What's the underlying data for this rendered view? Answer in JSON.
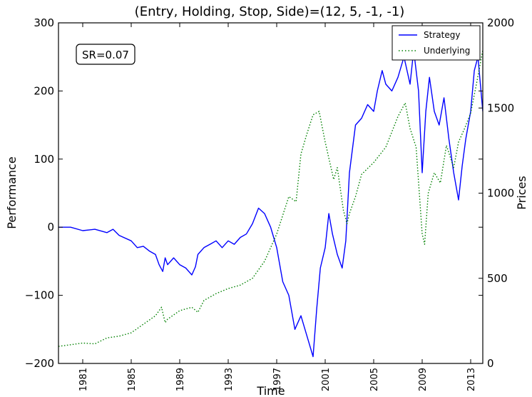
{
  "chart_data": {
    "type": "line",
    "title": "(Entry, Holding, Stop, Side)=(12, 5, -1, -1)",
    "xlabel": "Time",
    "ylabel": "Performance",
    "y2label": "Prices",
    "xlim": [
      1979.0,
      2014.0
    ],
    "ylim": [
      -200,
      300
    ],
    "y2lim": [
      0,
      2000
    ],
    "xticks": [
      1981,
      1985,
      1989,
      1993,
      1997,
      2001,
      2005,
      2009,
      2013
    ],
    "yticks": [
      -200,
      -100,
      0,
      100,
      200,
      300
    ],
    "y2ticks": [
      0,
      500,
      1000,
      1500,
      2000
    ],
    "grid": false,
    "legend_position": "upper-right",
    "annotation": "SR=0.07",
    "series": [
      {
        "name": "Strategy",
        "axis": "left",
        "color": "#0000ff",
        "style": "solid",
        "points": [
          [
            1979.0,
            0
          ],
          [
            1980.0,
            0
          ],
          [
            1981.0,
            -5
          ],
          [
            1982.0,
            -3
          ],
          [
            1983.0,
            -8
          ],
          [
            1983.5,
            -3
          ],
          [
            1984.0,
            -12
          ],
          [
            1985.0,
            -20
          ],
          [
            1985.5,
            -30
          ],
          [
            1986.0,
            -28
          ],
          [
            1986.5,
            -35
          ],
          [
            1987.0,
            -40
          ],
          [
            1987.3,
            -55
          ],
          [
            1987.6,
            -65
          ],
          [
            1987.8,
            -45
          ],
          [
            1988.0,
            -55
          ],
          [
            1988.5,
            -45
          ],
          [
            1989.0,
            -55
          ],
          [
            1989.5,
            -60
          ],
          [
            1990.0,
            -70
          ],
          [
            1990.3,
            -58
          ],
          [
            1990.5,
            -40
          ],
          [
            1991.0,
            -30
          ],
          [
            1991.5,
            -25
          ],
          [
            1992.0,
            -20
          ],
          [
            1992.5,
            -30
          ],
          [
            1993.0,
            -20
          ],
          [
            1993.5,
            -25
          ],
          [
            1994.0,
            -15
          ],
          [
            1994.5,
            -10
          ],
          [
            1995.0,
            5
          ],
          [
            1995.5,
            28
          ],
          [
            1996.0,
            20
          ],
          [
            1996.5,
            0
          ],
          [
            1997.0,
            -30
          ],
          [
            1997.5,
            -80
          ],
          [
            1998.0,
            -100
          ],
          [
            1998.5,
            -150
          ],
          [
            1999.0,
            -130
          ],
          [
            1999.5,
            -160
          ],
          [
            2000.0,
            -190
          ],
          [
            2000.3,
            -120
          ],
          [
            2000.6,
            -60
          ],
          [
            2001.0,
            -30
          ],
          [
            2001.3,
            20
          ],
          [
            2001.6,
            -10
          ],
          [
            2002.0,
            -40
          ],
          [
            2002.4,
            -60
          ],
          [
            2002.7,
            -20
          ],
          [
            2003.0,
            80
          ],
          [
            2003.5,
            150
          ],
          [
            2004.0,
            160
          ],
          [
            2004.5,
            180
          ],
          [
            2005.0,
            170
          ],
          [
            2005.3,
            200
          ],
          [
            2005.7,
            230
          ],
          [
            2006.0,
            210
          ],
          [
            2006.5,
            200
          ],
          [
            2007.0,
            220
          ],
          [
            2007.5,
            250
          ],
          [
            2008.0,
            210
          ],
          [
            2008.3,
            260
          ],
          [
            2008.7,
            200
          ],
          [
            2009.0,
            80
          ],
          [
            2009.3,
            170
          ],
          [
            2009.6,
            220
          ],
          [
            2010.0,
            170
          ],
          [
            2010.4,
            150
          ],
          [
            2010.8,
            190
          ],
          [
            2011.2,
            130
          ],
          [
            2011.6,
            80
          ],
          [
            2012.0,
            40
          ],
          [
            2012.3,
            90
          ],
          [
            2012.6,
            130
          ],
          [
            2013.0,
            170
          ],
          [
            2013.3,
            230
          ],
          [
            2013.6,
            250
          ],
          [
            2014.0,
            170
          ]
        ]
      },
      {
        "name": "Underlying",
        "axis": "right",
        "color": "#008000",
        "style": "dotted",
        "points": [
          [
            1979.0,
            100
          ],
          [
            1980.0,
            110
          ],
          [
            1981.0,
            120
          ],
          [
            1982.0,
            115
          ],
          [
            1983.0,
            150
          ],
          [
            1984.0,
            160
          ],
          [
            1985.0,
            180
          ],
          [
            1986.0,
            230
          ],
          [
            1987.0,
            280
          ],
          [
            1987.5,
            330
          ],
          [
            1987.8,
            240
          ],
          [
            1988.0,
            260
          ],
          [
            1989.0,
            310
          ],
          [
            1990.0,
            330
          ],
          [
            1990.5,
            300
          ],
          [
            1991.0,
            370
          ],
          [
            1992.0,
            410
          ],
          [
            1993.0,
            440
          ],
          [
            1994.0,
            460
          ],
          [
            1995.0,
            500
          ],
          [
            1996.0,
            600
          ],
          [
            1997.0,
            760
          ],
          [
            1998.0,
            980
          ],
          [
            1998.6,
            950
          ],
          [
            1999.0,
            1230
          ],
          [
            1999.5,
            1350
          ],
          [
            2000.0,
            1460
          ],
          [
            2000.5,
            1480
          ],
          [
            2001.0,
            1300
          ],
          [
            2001.7,
            1080
          ],
          [
            2002.0,
            1150
          ],
          [
            2002.5,
            900
          ],
          [
            2002.8,
            820
          ],
          [
            2003.0,
            880
          ],
          [
            2003.5,
            980
          ],
          [
            2004.0,
            1110
          ],
          [
            2005.0,
            1180
          ],
          [
            2006.0,
            1270
          ],
          [
            2007.0,
            1450
          ],
          [
            2007.6,
            1530
          ],
          [
            2008.0,
            1380
          ],
          [
            2008.5,
            1270
          ],
          [
            2009.0,
            760
          ],
          [
            2009.2,
            700
          ],
          [
            2009.5,
            1000
          ],
          [
            2010.0,
            1120
          ],
          [
            2010.5,
            1060
          ],
          [
            2011.0,
            1280
          ],
          [
            2011.6,
            1150
          ],
          [
            2012.0,
            1300
          ],
          [
            2012.5,
            1380
          ],
          [
            2013.0,
            1470
          ],
          [
            2013.5,
            1650
          ],
          [
            2014.0,
            1840
          ]
        ]
      }
    ]
  }
}
